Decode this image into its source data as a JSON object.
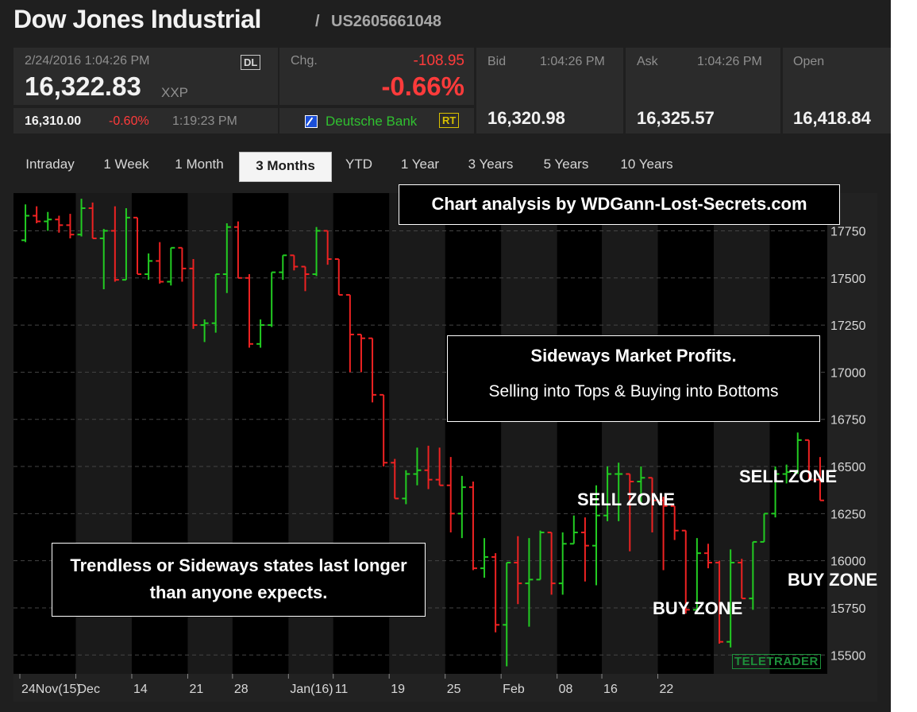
{
  "header": {
    "title": "Dow Jones Industrial",
    "separator": "/",
    "isin": "US2605661048"
  },
  "quote": {
    "datetime": "2/24/2016 1:04:26 PM",
    "exchange_badge": "DL",
    "price": "16,322.83",
    "symbol": "XXP",
    "sub_price": "16,310.00",
    "sub_change": "-0.60%",
    "sub_time": "1:19:23 PM",
    "change_label": "Chg.",
    "change_abs": "-108.95",
    "change_pct": "-0.66%",
    "provider": "Deutsche Bank",
    "rt_badge": "RT",
    "bid_label": "Bid",
    "bid_time": "1:04:26 PM",
    "bid": "16,320.98",
    "ask_label": "Ask",
    "ask_time": "1:04:26 PM",
    "ask": "16,325.57",
    "open_label": "Open",
    "open": "16,418.84"
  },
  "tabs": [
    {
      "label": "Intraday"
    },
    {
      "label": "1 Week"
    },
    {
      "label": "1 Month"
    },
    {
      "label": "3 Months",
      "active": true
    },
    {
      "label": "YTD"
    },
    {
      "label": "1 Year"
    },
    {
      "label": "3 Years"
    },
    {
      "label": "5 Years"
    },
    {
      "label": "10 Years"
    }
  ],
  "annotations": {
    "credit": "Chart analysis by WDGann-Lost-Secrets.com",
    "box1_title": "Sideways Market Profits.",
    "box1_text": "Selling into Tops & Buying into Bottoms",
    "box2_text": "Trendless or Sideways states last longer than anyone expects.",
    "zones": [
      "SELL ZONE",
      "SELL ZONE",
      "BUY ZONE",
      "BUY ZONE"
    ],
    "watermark": "TELETRADER"
  },
  "colors": {
    "up": "#22cc22",
    "down": "#ee2222",
    "background": "#000000",
    "stripe": "#1a1a1a"
  },
  "chart_data": {
    "type": "ohlc",
    "ylim": [
      15400,
      17950
    ],
    "yticks": [
      15500,
      15750,
      16000,
      16250,
      16500,
      16750,
      17000,
      17250,
      17500,
      17750
    ],
    "x_tick_labels": [
      "24Nov(15)",
      "Dec",
      "14",
      "21",
      "28",
      "Jan(16)",
      "11",
      "19",
      "25",
      "Feb",
      "08",
      "16",
      "22"
    ],
    "bars": [
      [
        17700,
        17890,
        17690,
        17830
      ],
      [
        17830,
        17880,
        17790,
        17800
      ],
      [
        17800,
        17850,
        17750,
        17810
      ],
      [
        17810,
        17830,
        17740,
        17780
      ],
      [
        17780,
        17840,
        17710,
        17730
      ],
      [
        17730,
        17920,
        17720,
        17870
      ],
      [
        17870,
        17900,
        17710,
        17710
      ],
      [
        17710,
        17760,
        17440,
        17750
      ],
      [
        17750,
        17880,
        17480,
        17490
      ],
      [
        17490,
        17870,
        17490,
        17820
      ],
      [
        17820,
        17730,
        17520,
        17520
      ],
      [
        17520,
        17630,
        17490,
        17590
      ],
      [
        17590,
        17690,
        17470,
        17480
      ],
      [
        17480,
        17660,
        17460,
        17660
      ],
      [
        17660,
        17640,
        17480,
        17550
      ],
      [
        17550,
        17600,
        17230,
        17250
      ],
      [
        17250,
        17280,
        17160,
        17260
      ],
      [
        17260,
        17520,
        17210,
        17520
      ],
      [
        17520,
        17790,
        17420,
        17770
      ],
      [
        17770,
        17800,
        17500,
        17500
      ],
      [
        17500,
        17520,
        17130,
        17150
      ],
      [
        17150,
        17280,
        17130,
        17250
      ],
      [
        17250,
        17530,
        17240,
        17530
      ],
      [
        17530,
        17620,
        17490,
        17620
      ],
      [
        17620,
        17620,
        17540,
        17560
      ],
      [
        17560,
        17550,
        17430,
        17520
      ],
      [
        17520,
        17770,
        17510,
        17750
      ],
      [
        17750,
        17720,
        17570,
        17600
      ],
      [
        17600,
        17590,
        17470,
        17410
      ],
      [
        17410,
        17400,
        17000,
        17200
      ],
      [
        17200,
        17200,
        17000,
        17180
      ],
      [
        17180,
        16970,
        16840,
        16880
      ],
      [
        16880,
        16870,
        16500,
        16520
      ],
      [
        16520,
        16540,
        16420,
        16330
      ],
      [
        16330,
        16480,
        16300,
        16460
      ],
      [
        16460,
        16600,
        16400,
        16480
      ],
      [
        16480,
        16610,
        16380,
        16430
      ],
      [
        16430,
        16600,
        16450,
        16400
      ],
      [
        16400,
        16550,
        16150,
        16250
      ],
      [
        16250,
        16450,
        16120,
        16390
      ],
      [
        16390,
        16420,
        15950,
        15960
      ],
      [
        15960,
        16120,
        15910,
        16020
      ],
      [
        16020,
        16040,
        15620,
        15660
      ],
      [
        15660,
        15990,
        15440,
        15990
      ],
      [
        15990,
        16130,
        15770,
        15880
      ],
      [
        15880,
        16120,
        15650,
        15900
      ],
      [
        15900,
        16160,
        15940,
        16150
      ],
      [
        16150,
        16050,
        15820,
        15880
      ],
      [
        15880,
        16150,
        15820,
        16090
      ],
      [
        16090,
        16240,
        16100,
        16150
      ],
      [
        16150,
        16230,
        15890,
        16080
      ],
      [
        16080,
        16400,
        15870,
        16240
      ],
      [
        16240,
        16500,
        16210,
        16460
      ],
      [
        16460,
        16520,
        16210,
        16460
      ],
      [
        16460,
        16420,
        16050,
        16420
      ],
      [
        16420,
        16500,
        16300,
        16440
      ],
      [
        16440,
        16400,
        16150,
        16320
      ],
      [
        16320,
        16340,
        15950,
        16290
      ],
      [
        16290,
        16250,
        16110,
        16160
      ],
      [
        16160,
        15990,
        15720,
        15740
      ],
      [
        15740,
        16120,
        15850,
        16040
      ],
      [
        16040,
        16090,
        15960,
        15990
      ],
      [
        15990,
        16000,
        15560,
        15570
      ],
      [
        15570,
        16060,
        15540,
        15990
      ],
      [
        15990,
        16010,
        15820,
        15800
      ],
      [
        15800,
        16040,
        15740,
        16100
      ],
      [
        16100,
        16250,
        16100,
        16250
      ],
      [
        16250,
        16500,
        16230,
        16460
      ],
      [
        16460,
        16510,
        16410,
        16470
      ],
      [
        16470,
        16680,
        16460,
        16640
      ],
      [
        16640,
        16620,
        16500,
        16430
      ],
      [
        16430,
        16550,
        16340,
        16320
      ]
    ]
  }
}
